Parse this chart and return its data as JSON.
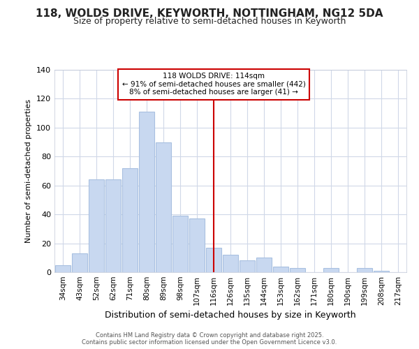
{
  "title": "118, WOLDS DRIVE, KEYWORTH, NOTTINGHAM, NG12 5DA",
  "subtitle": "Size of property relative to semi-detached houses in Keyworth",
  "xlabel": "Distribution of semi-detached houses by size in Keyworth",
  "ylabel": "Number of semi-detached properties",
  "bar_color": "#c8d8f0",
  "bar_edge_color": "#a8c0e0",
  "categories": [
    "34sqm",
    "43sqm",
    "52sqm",
    "62sqm",
    "71sqm",
    "80sqm",
    "89sqm",
    "98sqm",
    "107sqm",
    "116sqm",
    "126sqm",
    "135sqm",
    "144sqm",
    "153sqm",
    "162sqm",
    "171sqm",
    "180sqm",
    "190sqm",
    "199sqm",
    "208sqm",
    "217sqm"
  ],
  "values": [
    5,
    13,
    64,
    64,
    72,
    111,
    90,
    39,
    37,
    17,
    12,
    8,
    10,
    4,
    3,
    0,
    3,
    0,
    3,
    1,
    0
  ],
  "property_size": 114,
  "property_label": "118 WOLDS DRIVE: 114sqm",
  "pct_smaller": 91,
  "n_smaller": 442,
  "pct_larger": 8,
  "n_larger": 41,
  "vline_color": "#cc0000",
  "annotation_box_color": "#cc0000",
  "ylim": [
    0,
    140
  ],
  "yticks": [
    0,
    20,
    40,
    60,
    80,
    100,
    120,
    140
  ],
  "background_color": "#ffffff",
  "plot_bg_color": "#ffffff",
  "footer_line1": "Contains HM Land Registry data © Crown copyright and database right 2025.",
  "footer_line2": "Contains public sector information licensed under the Open Government Licence v3.0."
}
